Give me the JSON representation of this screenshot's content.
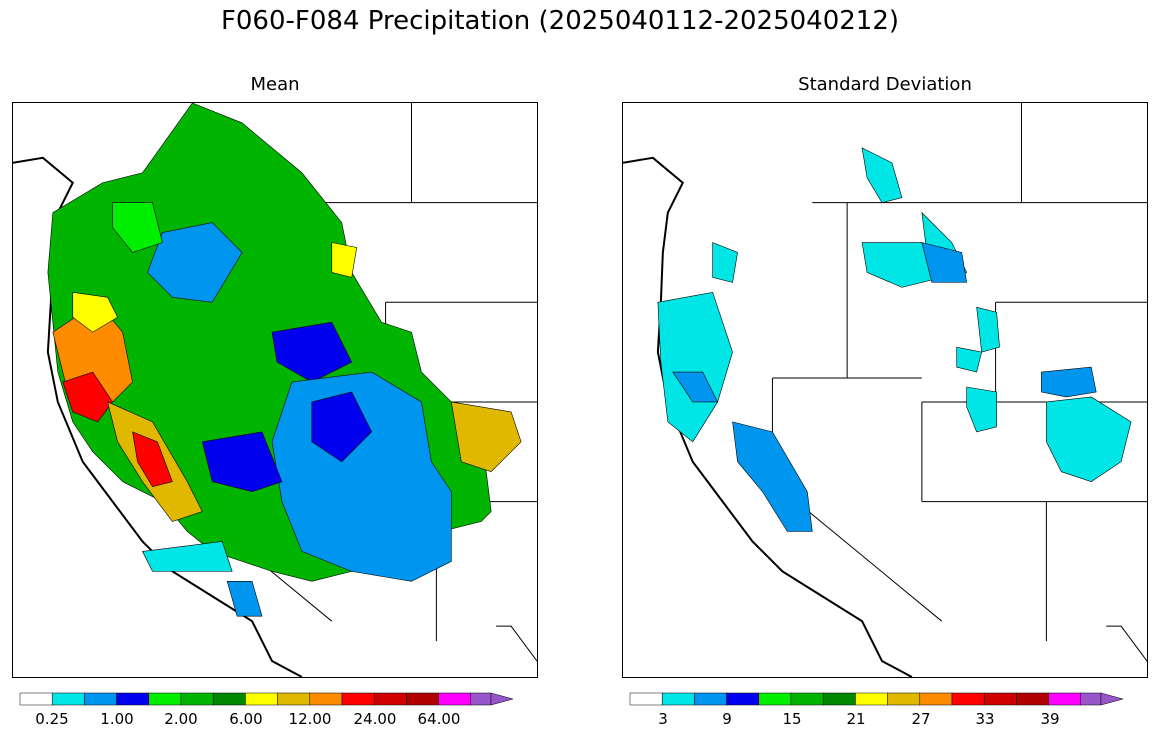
{
  "title": "F060-F084 Precipitation (2025040112-2025040212)",
  "panels": {
    "mean": {
      "title": "Mean",
      "colorbar_ticks": [
        "0.25",
        "1.00",
        "2.00",
        "6.00",
        "12.00",
        "24.00",
        "64.00"
      ]
    },
    "std": {
      "title": "Standard Deviation",
      "colorbar_ticks": [
        "3",
        "9",
        "15",
        "21",
        "27",
        "33",
        "39"
      ]
    }
  },
  "colorbar_colors": [
    "#ffffff",
    "#00e5e5",
    "#0096f0",
    "#0000ee",
    "#00ee00",
    "#00b400",
    "#008800",
    "#ffff00",
    "#e0b800",
    "#ff8c00",
    "#ff0000",
    "#d00000",
    "#b00000",
    "#ff00ff",
    "#9955cc"
  ],
  "map_colors": {
    "land": "#ffffff",
    "outline": "#000000"
  }
}
